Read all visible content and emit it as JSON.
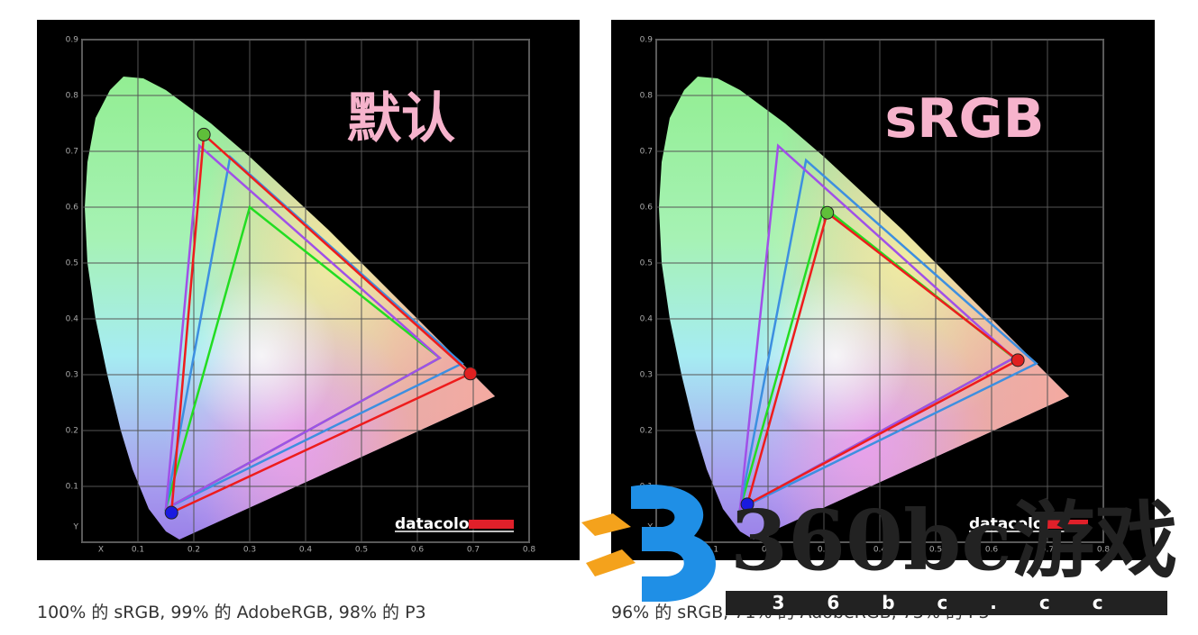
{
  "chart_data": [
    {
      "type": "gamut",
      "annotation": "默认",
      "logo": "datacolor",
      "xlim": [
        0,
        0.8
      ],
      "ylim": [
        0,
        0.9
      ],
      "xticks": [
        {
          "value": 0,
          "label": "X"
        },
        0.1,
        0.2,
        0.3,
        0.4,
        0.5,
        0.6,
        0.7,
        0.8
      ],
      "yticks": [
        {
          "value": 0,
          "label": "Y"
        },
        0.1,
        0.2,
        0.3,
        0.4,
        0.5,
        0.6,
        0.7,
        0.8,
        0.9
      ],
      "grid": true,
      "series": [
        {
          "color": "#22dd22",
          "x": [
            0.3,
            0.64,
            0.15
          ],
          "y": [
            0.6,
            0.33,
            0.06
          ]
        },
        {
          "color": "#3d8fe0",
          "x": [
            0.265,
            0.68,
            0.15
          ],
          "y": [
            0.69,
            0.32,
            0.06
          ]
        },
        {
          "color": "#a050e8",
          "x": [
            0.21,
            0.64,
            0.15
          ],
          "y": [
            0.71,
            0.33,
            0.06
          ]
        },
        {
          "color": "#ee1c1c",
          "x": [
            0.218,
            0.695,
            0.16
          ],
          "y": [
            0.73,
            0.302,
            0.053
          ],
          "markers": true,
          "marker_colors": [
            "#5fbf3a",
            "#e02020",
            "#1a1ae0"
          ]
        }
      ]
    },
    {
      "type": "gamut",
      "annotation": "sRGB",
      "logo": "datacolor",
      "xlim": [
        0,
        0.8
      ],
      "ylim": [
        0,
        0.9
      ],
      "xticks": [
        {
          "value": 0,
          "label": "X"
        },
        0.1,
        0.2,
        0.3,
        0.4,
        0.5,
        0.6,
        0.7,
        0.8
      ],
      "yticks": [
        {
          "value": 0,
          "label": "Y"
        },
        0.1,
        0.2,
        0.3,
        0.4,
        0.5,
        0.6,
        0.7,
        0.8,
        0.9
      ],
      "grid": true,
      "series": [
        {
          "color": "#22dd22",
          "x": [
            0.3,
            0.64,
            0.15
          ],
          "y": [
            0.6,
            0.33,
            0.06
          ]
        },
        {
          "color": "#3d8fe0",
          "x": [
            0.268,
            0.68,
            0.15
          ],
          "y": [
            0.684,
            0.32,
            0.06
          ]
        },
        {
          "color": "#a050e8",
          "x": [
            0.218,
            0.64,
            0.15
          ],
          "y": [
            0.71,
            0.33,
            0.06
          ]
        },
        {
          "color": "#ee1c1c",
          "x": [
            0.306,
            0.647,
            0.163
          ],
          "y": [
            0.59,
            0.326,
            0.068
          ],
          "markers": true,
          "marker_colors": [
            "#5fbf3a",
            "#e02020",
            "#1a1ae0"
          ]
        }
      ]
    }
  ],
  "captions": [
    "100% 的 sRGB, 99% 的 AdobeRGB, 98% 的 P3",
    "96% 的 sRGB, 71% 的 AdobeRGB, 73% 的 P3"
  ],
  "watermark": {
    "text": "360bc游戏",
    "url": "3 6 b c . c c"
  }
}
